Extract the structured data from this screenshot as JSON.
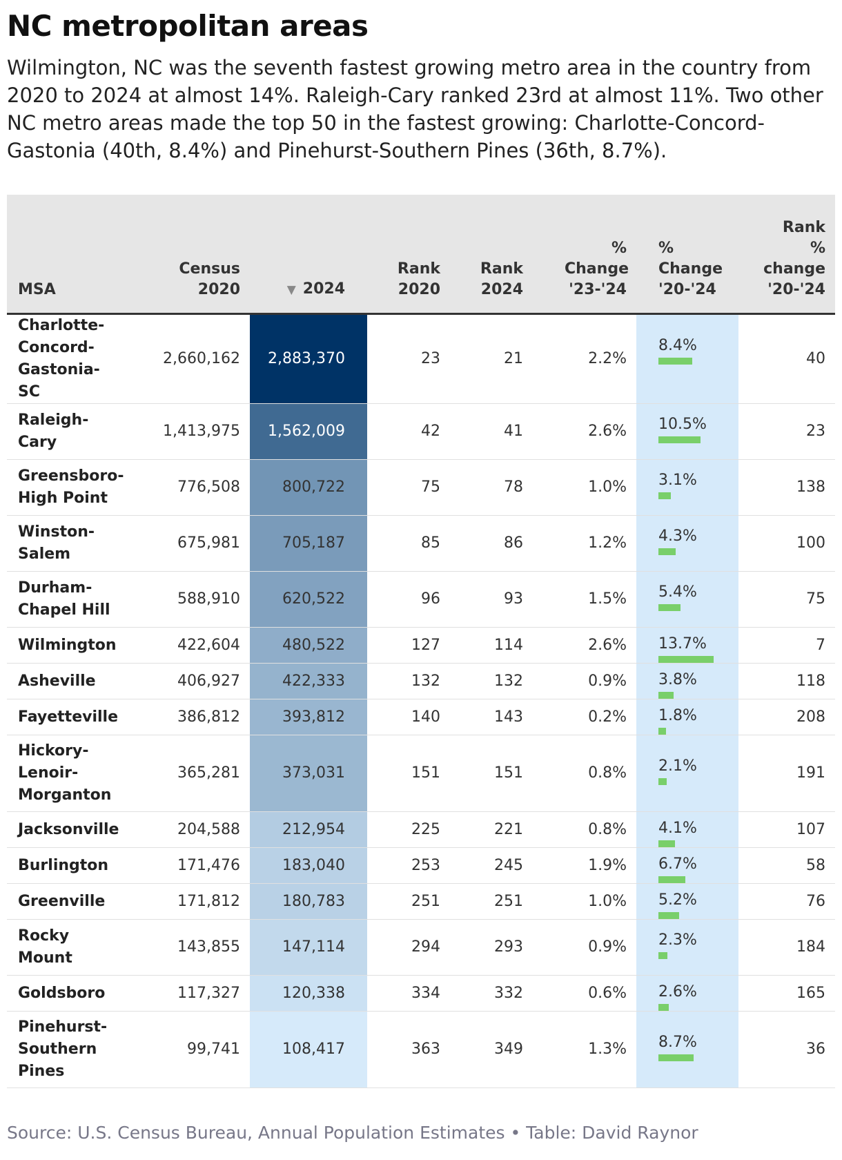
{
  "title": "NC metropolitan areas",
  "subtitle": "Wilmington, NC was the seventh fastest growing metro area in the country from 2020 to 2024 at almost 14%. Raleigh-Cary ranked 23rd at almost 11%. Two other NC metro areas made the top 50 in the fastest growing: Charlotte-Concord-Gastonia (40th, 8.4%) and Pinehurst-Southern Pines (36th, 8.7%).",
  "columns": [
    {
      "key": "msa",
      "label": "MSA"
    },
    {
      "key": "census_2020",
      "label": "Census 2020"
    },
    {
      "key": "pop_2024",
      "label": "2024",
      "sorted": "descending"
    },
    {
      "key": "rank_2020",
      "label": "Rank 2020"
    },
    {
      "key": "rank_2024",
      "label": "Rank 2024"
    },
    {
      "key": "pct_23_24",
      "label": "% Change '23-'24"
    },
    {
      "key": "pct_20_24",
      "label": "% Change '20-'24"
    },
    {
      "key": "rank_pct_20_24",
      "label": "Rank % change '20-'24"
    }
  ],
  "colors": {
    "heat_max": "#003366",
    "heat_min": "#d6eafa",
    "pct_column_bg": "#d6eafa",
    "bar": "#79cf6a",
    "header_bg": "#e6e6e6"
  },
  "chart_data": {
    "type": "table",
    "heatmap_column": "pop_2024",
    "bar_column": "pct_20_24",
    "bar_max": 13.7,
    "rows": [
      {
        "msa": "Charlotte-Concord-Gastonia-SC",
        "census_2020": "2,660,162",
        "pop_2024": 2883370,
        "pop_2024_label": "2,883,370",
        "rank_2020": "23",
        "rank_2024": "21",
        "pct_23_24": "2.2%",
        "pct_20_24": 8.4,
        "pct_20_24_label": "8.4%",
        "rank_pct_20_24": "40"
      },
      {
        "msa": "Raleigh-Cary",
        "census_2020": "1,413,975",
        "pop_2024": 1562009,
        "pop_2024_label": "1,562,009",
        "rank_2020": "42",
        "rank_2024": "41",
        "pct_23_24": "2.6%",
        "pct_20_24": 10.5,
        "pct_20_24_label": "10.5%",
        "rank_pct_20_24": "23"
      },
      {
        "msa": "Greensboro-High Point",
        "census_2020": "776,508",
        "pop_2024": 800722,
        "pop_2024_label": "800,722",
        "rank_2020": "75",
        "rank_2024": "78",
        "pct_23_24": "1.0%",
        "pct_20_24": 3.1,
        "pct_20_24_label": "3.1%",
        "rank_pct_20_24": "138"
      },
      {
        "msa": "Winston-Salem",
        "census_2020": "675,981",
        "pop_2024": 705187,
        "pop_2024_label": "705,187",
        "rank_2020": "85",
        "rank_2024": "86",
        "pct_23_24": "1.2%",
        "pct_20_24": 4.3,
        "pct_20_24_label": "4.3%",
        "rank_pct_20_24": "100"
      },
      {
        "msa": "Durham-Chapel Hill",
        "census_2020": "588,910",
        "pop_2024": 620522,
        "pop_2024_label": "620,522",
        "rank_2020": "96",
        "rank_2024": "93",
        "pct_23_24": "1.5%",
        "pct_20_24": 5.4,
        "pct_20_24_label": "5.4%",
        "rank_pct_20_24": "75"
      },
      {
        "msa": "Wilmington",
        "census_2020": "422,604",
        "pop_2024": 480522,
        "pop_2024_label": "480,522",
        "rank_2020": "127",
        "rank_2024": "114",
        "pct_23_24": "2.6%",
        "pct_20_24": 13.7,
        "pct_20_24_label": "13.7%",
        "rank_pct_20_24": "7"
      },
      {
        "msa": "Asheville",
        "census_2020": "406,927",
        "pop_2024": 422333,
        "pop_2024_label": "422,333",
        "rank_2020": "132",
        "rank_2024": "132",
        "pct_23_24": "0.9%",
        "pct_20_24": 3.8,
        "pct_20_24_label": "3.8%",
        "rank_pct_20_24": "118"
      },
      {
        "msa": "Fayetteville",
        "census_2020": "386,812",
        "pop_2024": 393812,
        "pop_2024_label": "393,812",
        "rank_2020": "140",
        "rank_2024": "143",
        "pct_23_24": "0.2%",
        "pct_20_24": 1.8,
        "pct_20_24_label": "1.8%",
        "rank_pct_20_24": "208"
      },
      {
        "msa": "Hickory-Lenoir-Morganton",
        "census_2020": "365,281",
        "pop_2024": 373031,
        "pop_2024_label": "373,031",
        "rank_2020": "151",
        "rank_2024": "151",
        "pct_23_24": "0.8%",
        "pct_20_24": 2.1,
        "pct_20_24_label": "2.1%",
        "rank_pct_20_24": "191"
      },
      {
        "msa": "Jacksonville",
        "census_2020": "204,588",
        "pop_2024": 212954,
        "pop_2024_label": "212,954",
        "rank_2020": "225",
        "rank_2024": "221",
        "pct_23_24": "0.8%",
        "pct_20_24": 4.1,
        "pct_20_24_label": "4.1%",
        "rank_pct_20_24": "107"
      },
      {
        "msa": "Burlington",
        "census_2020": "171,476",
        "pop_2024": 183040,
        "pop_2024_label": "183,040",
        "rank_2020": "253",
        "rank_2024": "245",
        "pct_23_24": "1.9%",
        "pct_20_24": 6.7,
        "pct_20_24_label": "6.7%",
        "rank_pct_20_24": "58"
      },
      {
        "msa": "Greenville",
        "census_2020": "171,812",
        "pop_2024": 180783,
        "pop_2024_label": "180,783",
        "rank_2020": "251",
        "rank_2024": "251",
        "pct_23_24": "1.0%",
        "pct_20_24": 5.2,
        "pct_20_24_label": "5.2%",
        "rank_pct_20_24": "76"
      },
      {
        "msa": "Rocky Mount",
        "census_2020": "143,855",
        "pop_2024": 147114,
        "pop_2024_label": "147,114",
        "rank_2020": "294",
        "rank_2024": "293",
        "pct_23_24": "0.9%",
        "pct_20_24": 2.3,
        "pct_20_24_label": "2.3%",
        "rank_pct_20_24": "184"
      },
      {
        "msa": "Goldsboro",
        "census_2020": "117,327",
        "pop_2024": 120338,
        "pop_2024_label": "120,338",
        "rank_2020": "334",
        "rank_2024": "332",
        "pct_23_24": "0.6%",
        "pct_20_24": 2.6,
        "pct_20_24_label": "2.6%",
        "rank_pct_20_24": "165"
      },
      {
        "msa": "Pinehurst-Southern Pines",
        "census_2020": "99,741",
        "pop_2024": 108417,
        "pop_2024_label": "108,417",
        "rank_2020": "363",
        "rank_2024": "349",
        "pct_23_24": "1.3%",
        "pct_20_24": 8.7,
        "pct_20_24_label": "8.7%",
        "rank_pct_20_24": "36"
      }
    ]
  },
  "source": "Source: U.S. Census Bureau, Annual Population Estimates • Table: David Raynor"
}
